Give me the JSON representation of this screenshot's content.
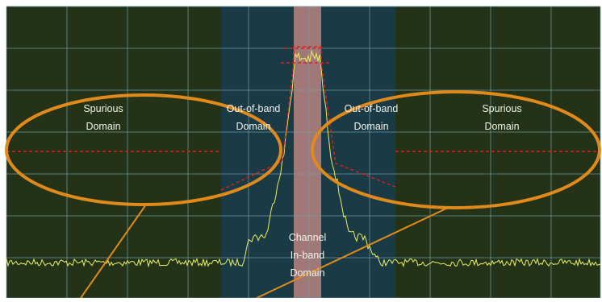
{
  "regions": {
    "spurious_left": {
      "line1": "Spurious",
      "line2": "Domain"
    },
    "oob_left": {
      "line1": "Out-of-band",
      "line2": "Domain"
    },
    "oob_right": {
      "line1": "Out-of-band",
      "line2": "Domain"
    },
    "spurious_right": {
      "line1": "Spurious",
      "line2": "Domain"
    },
    "channel": {
      "line1": "Channel",
      "line2": "In-band",
      "line3": "Domain"
    }
  },
  "colors": {
    "background": "#243318",
    "oob_band": "#1a3a46",
    "channel_band": "#a07878",
    "grid": "#6f9ea6",
    "trace": "#e8f060",
    "mask": "#e02020",
    "ellipse": "#e08a1c"
  }
}
